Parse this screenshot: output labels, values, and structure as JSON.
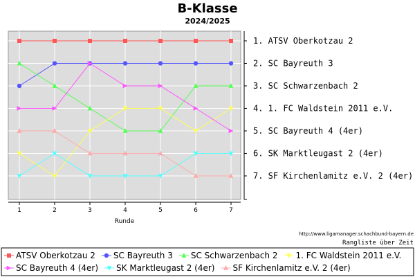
{
  "chart_data": {
    "type": "line",
    "title": "B-Klasse",
    "subtitle": "2024/2025",
    "xlabel": "Runde",
    "ylabel": "",
    "x": [
      1,
      2,
      3,
      4,
      5,
      6,
      7
    ],
    "ylim": [
      1,
      7
    ],
    "y_inverted": true,
    "grid": true,
    "legend_position": "bottom",
    "ranking_labels": [
      "1. ATSV Oberkotzau 2",
      "2. SC Bayreuth 3",
      "3. SC Schwarzenbach 2",
      "4. 1. FC Waldstein 2011 e.V.",
      "5. SC Bayreuth 4 (4er)",
      "6. SK Marktleugast 2 (4er)",
      "7. SF Kirchenlamitz e.V. 2 (4er)"
    ],
    "series": [
      {
        "name": "ATSV Oberkotzau 2",
        "values": [
          1,
          1,
          1,
          1,
          1,
          1,
          1
        ],
        "color": "#ff5555",
        "marker": "square"
      },
      {
        "name": "SC Bayreuth 3",
        "values": [
          3,
          2,
          2,
          2,
          2,
          2,
          2
        ],
        "color": "#5555ff",
        "marker": "circle"
      },
      {
        "name": "SC Schwarzenbach 2",
        "values": [
          2,
          3,
          4,
          5,
          5,
          3,
          3
        ],
        "color": "#55ff55",
        "marker": "triangle-up"
      },
      {
        "name": "1. FC Waldstein 2011 e.V.",
        "values": [
          6,
          7,
          5,
          4,
          4,
          5,
          4
        ],
        "color": "#ffff55",
        "marker": "triangle-down"
      },
      {
        "name": "SC Bayreuth 4 (4er)",
        "values": [
          4,
          4,
          2,
          3,
          3,
          4,
          5
        ],
        "color": "#ff55ff",
        "marker": "triangle-right"
      },
      {
        "name": "SK Marktleugast 2 (4er)",
        "values": [
          7,
          6,
          7,
          7,
          7,
          6,
          6
        ],
        "color": "#55ffff",
        "marker": "triangle-down"
      },
      {
        "name": "SF Kirchenlamitz e.V. 2 (4er)",
        "values": [
          5,
          5,
          6,
          6,
          6,
          7,
          7
        ],
        "color": "#ffaaaa",
        "marker": "triangle-up"
      }
    ]
  },
  "footer": {
    "url": "http://www.ligamanager.schachbund-bayern.de",
    "note": "Rangliste über Zeit"
  }
}
